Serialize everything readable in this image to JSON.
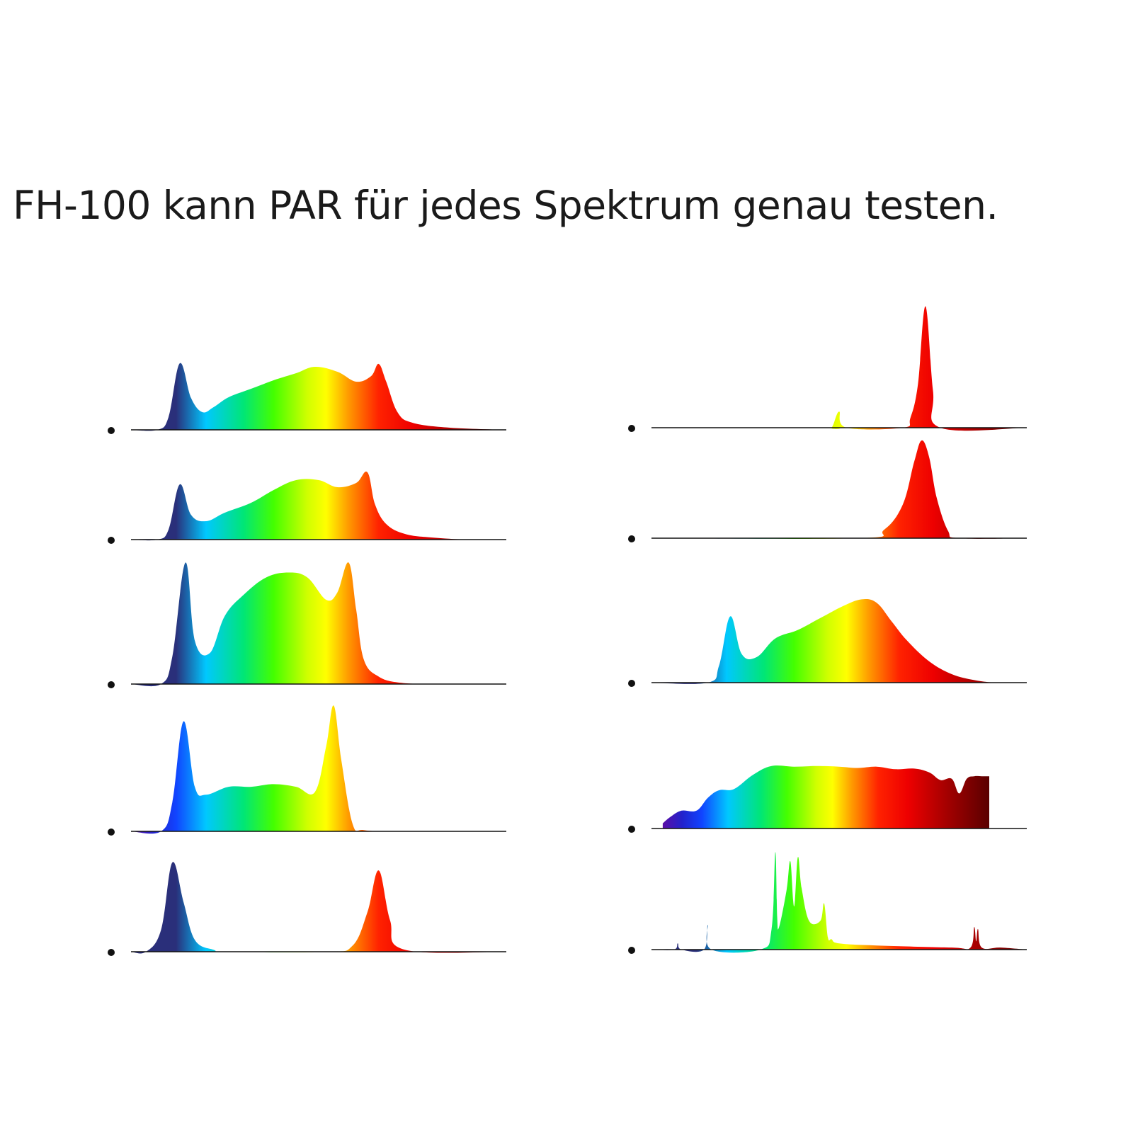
{
  "headline": "FH-100 kann PAR für jedes Spektrum genau testen.",
  "colors": {
    "background": "#ffffff",
    "text": "#1a1a1a",
    "baseline": "#111111",
    "bullet": "#111111",
    "gradient_stops": [
      [
        0.0,
        "#5b0ea6"
      ],
      [
        0.06,
        "#2222cc"
      ],
      [
        0.12,
        "#1144ff"
      ],
      [
        0.2,
        "#00c8ff"
      ],
      [
        0.3,
        "#00e676"
      ],
      [
        0.38,
        "#44ff00"
      ],
      [
        0.47,
        "#d0ff00"
      ],
      [
        0.52,
        "#ffff00"
      ],
      [
        0.58,
        "#ff9900"
      ],
      [
        0.66,
        "#ff2200"
      ],
      [
        0.75,
        "#ee0000"
      ],
      [
        0.86,
        "#aa0000"
      ],
      [
        1.0,
        "#5a0000"
      ]
    ]
  },
  "chart_data": [
    {
      "type": "area",
      "panel": "left-1",
      "title": "",
      "xlabel": "",
      "ylabel": "",
      "x": [
        0.0,
        0.07,
        0.1,
        0.13,
        0.16,
        0.19,
        0.22,
        0.26,
        0.32,
        0.38,
        0.44,
        0.49,
        0.55,
        0.6,
        0.64,
        0.66,
        0.68,
        0.71,
        0.75,
        0.85,
        1.0
      ],
      "values": [
        0.0,
        0.0,
        0.18,
        0.94,
        0.45,
        0.25,
        0.32,
        0.46,
        0.58,
        0.7,
        0.8,
        0.89,
        0.82,
        0.68,
        0.76,
        0.93,
        0.68,
        0.25,
        0.1,
        0.03,
        0.0
      ],
      "blue_tint": 0.75
    },
    {
      "type": "area",
      "panel": "left-2",
      "title": "",
      "xlabel": "",
      "ylabel": "",
      "x": [
        0.0,
        0.07,
        0.1,
        0.13,
        0.16,
        0.2,
        0.25,
        0.32,
        0.38,
        0.44,
        0.5,
        0.55,
        0.6,
        0.63,
        0.65,
        0.68,
        0.73,
        0.8,
        0.9,
        1.0
      ],
      "values": [
        0.0,
        0.0,
        0.14,
        0.78,
        0.35,
        0.26,
        0.38,
        0.52,
        0.7,
        0.84,
        0.84,
        0.74,
        0.8,
        0.95,
        0.5,
        0.22,
        0.08,
        0.03,
        0.0,
        0.0
      ],
      "blue_tint": 0.7
    },
    {
      "type": "area",
      "panel": "left-3",
      "title": "",
      "xlabel": "",
      "ylabel": "",
      "x": [
        0.0,
        0.08,
        0.11,
        0.145,
        0.17,
        0.21,
        0.25,
        0.3,
        0.36,
        0.42,
        0.47,
        0.52,
        0.55,
        0.58,
        0.6,
        0.62,
        0.66,
        0.72,
        0.82,
        1.0
      ],
      "values": [
        0.0,
        0.0,
        0.22,
        0.98,
        0.35,
        0.25,
        0.55,
        0.72,
        0.86,
        0.9,
        0.86,
        0.68,
        0.74,
        0.98,
        0.6,
        0.2,
        0.06,
        0.01,
        0.0,
        0.0
      ],
      "blue_tint": 0.8
    },
    {
      "type": "area",
      "panel": "left-4",
      "title": "",
      "xlabel": "",
      "ylabel": "",
      "x": [
        0.0,
        0.08,
        0.11,
        0.14,
        0.17,
        0.2,
        0.26,
        0.32,
        0.38,
        0.44,
        0.49,
        0.52,
        0.54,
        0.56,
        0.59,
        0.62,
        0.7,
        0.8,
        1.0
      ],
      "values": [
        0.0,
        0.0,
        0.22,
        0.84,
        0.34,
        0.28,
        0.34,
        0.34,
        0.36,
        0.34,
        0.3,
        0.65,
        0.96,
        0.55,
        0.06,
        0.01,
        0.0,
        0.0,
        0.0
      ],
      "blue_tint": 0.25
    },
    {
      "type": "area",
      "panel": "left-5",
      "title": "",
      "xlabel": "",
      "ylabel": "",
      "x": [
        0.0,
        0.04,
        0.08,
        0.11,
        0.14,
        0.17,
        0.22,
        0.26,
        0.52,
        0.59,
        0.63,
        0.66,
        0.69,
        0.73,
        1.0
      ],
      "values": [
        0.0,
        0.0,
        0.22,
        0.9,
        0.5,
        0.12,
        0.02,
        0.0,
        0.0,
        0.06,
        0.4,
        0.82,
        0.32,
        0.02,
        0.0
      ],
      "blue_tint": 0.75
    },
    {
      "type": "area",
      "panel": "right-1",
      "title": "",
      "xlabel": "",
      "ylabel": "",
      "x": [
        0.0,
        0.46,
        0.48,
        0.5,
        0.52,
        0.67,
        0.69,
        0.71,
        0.73,
        0.75,
        0.77,
        1.0
      ],
      "values": [
        0.0,
        0.0,
        0.0,
        0.13,
        0.0,
        0.0,
        0.08,
        0.35,
        0.98,
        0.3,
        0.0,
        0.0
      ],
      "blue_tint": 0.1
    },
    {
      "type": "area",
      "panel": "right-2",
      "title": "",
      "xlabel": "",
      "ylabel": "",
      "x": [
        0.0,
        0.55,
        0.62,
        0.67,
        0.7,
        0.72,
        0.74,
        0.76,
        0.79,
        0.82,
        1.0
      ],
      "values": [
        0.0,
        0.0,
        0.08,
        0.32,
        0.72,
        0.92,
        0.76,
        0.38,
        0.07,
        0.0,
        0.0
      ],
      "blue_tint": 0.0
    },
    {
      "type": "area",
      "panel": "right-3",
      "title": "",
      "xlabel": "",
      "ylabel": "",
      "x": [
        0.0,
        0.15,
        0.18,
        0.21,
        0.24,
        0.28,
        0.33,
        0.39,
        0.45,
        0.51,
        0.56,
        0.6,
        0.64,
        0.68,
        0.74,
        0.8,
        0.86,
        0.92,
        1.0
      ],
      "values": [
        0.0,
        0.0,
        0.2,
        0.78,
        0.34,
        0.3,
        0.52,
        0.62,
        0.76,
        0.9,
        0.98,
        0.94,
        0.72,
        0.5,
        0.25,
        0.1,
        0.03,
        0.0,
        0.0
      ],
      "blue_tint": 0.75
    },
    {
      "type": "area",
      "panel": "right-4",
      "title": "",
      "xlabel": "",
      "ylabel": "",
      "x": [
        0.03,
        0.05,
        0.08,
        0.12,
        0.15,
        0.18,
        0.22,
        0.27,
        0.32,
        0.38,
        0.44,
        0.5,
        0.55,
        0.6,
        0.65,
        0.7,
        0.74,
        0.77,
        0.8,
        0.82,
        0.84,
        0.86,
        0.88,
        0.9
      ],
      "values": [
        0.08,
        0.18,
        0.28,
        0.28,
        0.48,
        0.6,
        0.62,
        0.84,
        0.98,
        0.97,
        0.98,
        0.97,
        0.95,
        0.97,
        0.93,
        0.94,
        0.88,
        0.76,
        0.78,
        0.55,
        0.78,
        0.82,
        0.82,
        0.82
      ],
      "blue_tint": 0.0
    },
    {
      "type": "area",
      "panel": "right-5",
      "title": "",
      "xlabel": "",
      "ylabel": "",
      "x": [
        0.0,
        0.06,
        0.07,
        0.08,
        0.14,
        0.15,
        0.16,
        0.29,
        0.32,
        0.33,
        0.335,
        0.34,
        0.36,
        0.37,
        0.38,
        0.39,
        0.4,
        0.42,
        0.45,
        0.46,
        0.47,
        0.48,
        0.5,
        0.6,
        0.8,
        0.85,
        0.86,
        0.865,
        0.87,
        0.88,
        0.93,
        1.0
      ],
      "values": [
        0.0,
        0.0,
        0.06,
        0.0,
        0.0,
        0.24,
        0.0,
        0.0,
        0.2,
        0.95,
        0.32,
        0.22,
        0.58,
        0.86,
        0.42,
        0.9,
        0.6,
        0.28,
        0.28,
        0.45,
        0.12,
        0.1,
        0.06,
        0.04,
        0.02,
        0.02,
        0.22,
        0.08,
        0.2,
        0.02,
        0.02,
        0.0
      ],
      "blue_tint": 0.5
    }
  ]
}
